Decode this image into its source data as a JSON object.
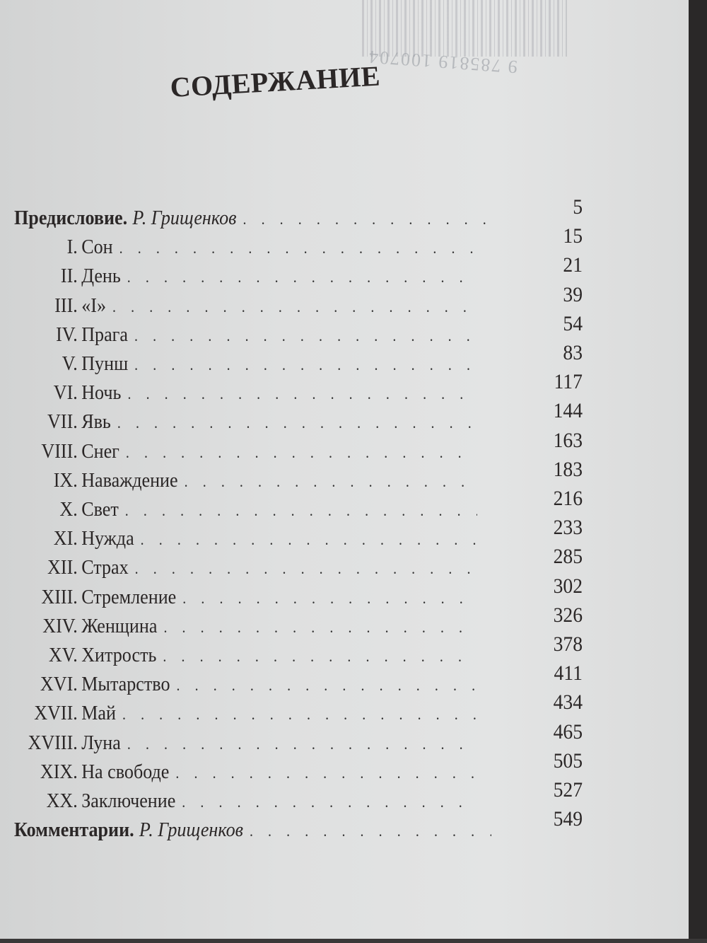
{
  "title": "СОДЕРЖАНИЕ",
  "barcode_digits": "9 785819 100704",
  "entries": [
    {
      "name": "Предисловие.",
      "author": "Р. Грищенков",
      "type": "front"
    },
    {
      "roman": "I.",
      "name": "Сон"
    },
    {
      "roman": "II.",
      "name": "День"
    },
    {
      "roman": "III.",
      "name": "«I»"
    },
    {
      "roman": "IV.",
      "name": "Прага"
    },
    {
      "roman": "V.",
      "name": "Пунш"
    },
    {
      "roman": "VI.",
      "name": "Ночь"
    },
    {
      "roman": "VII.",
      "name": "Явь"
    },
    {
      "roman": "VIII.",
      "name": "Снег"
    },
    {
      "roman": "IX.",
      "name": "Наваждение"
    },
    {
      "roman": "X.",
      "name": "Свет"
    },
    {
      "roman": "XI.",
      "name": "Нужда"
    },
    {
      "roman": "XII.",
      "name": "Страх"
    },
    {
      "roman": "XIII.",
      "name": "Стремление"
    },
    {
      "roman": "XIV.",
      "name": "Женщина"
    },
    {
      "roman": "XV.",
      "name": "Хитрость"
    },
    {
      "roman": "XVI.",
      "name": "Мытарство"
    },
    {
      "roman": "XVII.",
      "name": "Май"
    },
    {
      "roman": "XVIII.",
      "name": "Луна"
    },
    {
      "roman": "XIX.",
      "name": "На свободе"
    },
    {
      "roman": "XX.",
      "name": "Заключение"
    },
    {
      "name": "Комментарии.",
      "author": "Р. Грищенков",
      "type": "front"
    }
  ],
  "page_numbers": [
    "5",
    "15",
    "21",
    "39",
    "54",
    "83",
    "117",
    "144",
    "163",
    "183",
    "216",
    "233",
    "285",
    "302",
    "326",
    "378",
    "411",
    "434",
    "465",
    "505",
    "527",
    "549"
  ]
}
